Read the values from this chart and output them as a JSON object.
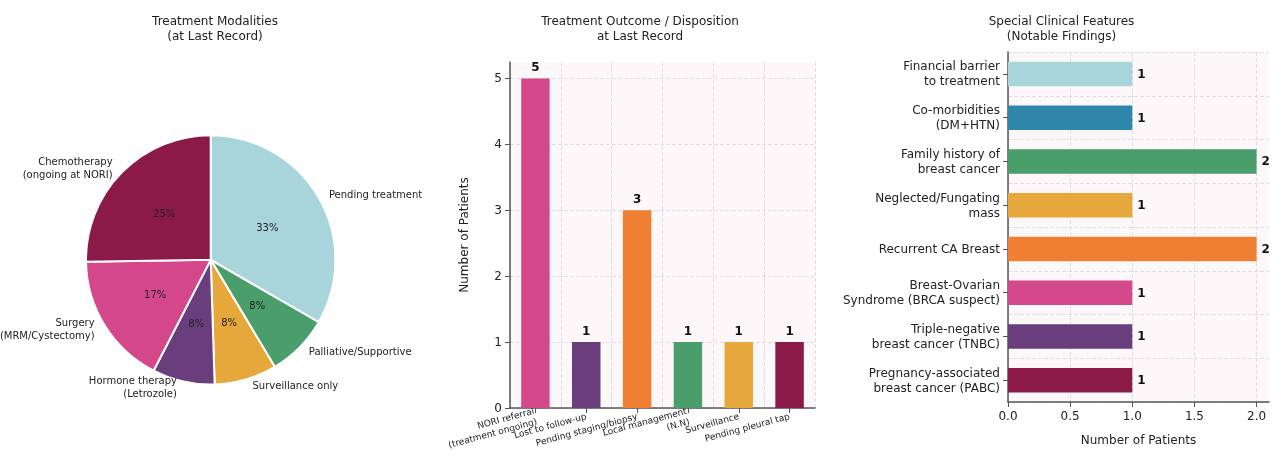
{
  "chart_data": [
    {
      "type": "pie",
      "title": "Treatment Modalities\n(at Last Record)",
      "categories": [
        "Pending treatment",
        "Palliative/Supportive",
        "Surveillance only",
        "Hormone therapy\n(Letrozole)",
        "Surgery\n(MRM/Cystectomy)",
        "Chemotherapy\n(ongoing at NORI)"
      ],
      "values": [
        33,
        8,
        8,
        8,
        17,
        25
      ],
      "value_labels": [
        "33%",
        "8%",
        "8%",
        "8%",
        "17%",
        "25%"
      ],
      "colors": [
        "#a8d5dc",
        "#4a9e6b",
        "#e6a83a",
        "#6a3d7c",
        "#d4478a",
        "#8b1a48"
      ]
    },
    {
      "type": "bar",
      "title": "Treatment Outcome / Disposition\nat Last Record",
      "ylabel": "Number of Patients",
      "categories": [
        "NORI referral\n(treatment ongoing)",
        "Lost to follow-up",
        "Pending staging/biopsy",
        "Local management\n(N.N)",
        "Surveillance",
        "Pending pleural tap"
      ],
      "values": [
        5,
        1,
        3,
        1,
        1,
        1
      ],
      "colors": [
        "#d4478a",
        "#6a3d7c",
        "#ef7f32",
        "#4a9e6b",
        "#e6a83a",
        "#8b1a48"
      ],
      "ylim": [
        0,
        5.25
      ],
      "yticks": [
        0,
        1,
        2,
        3,
        4,
        5
      ],
      "grid": true,
      "data_labels": true
    },
    {
      "type": "bar",
      "orientation": "horizontal",
      "title": "Special Clinical Features\n(Notable Findings)",
      "xlabel": "Number of Patients",
      "categories": [
        "Financial barrier\nto treatment",
        "Co-morbidities\n(DM+HTN)",
        "Family history of\nbreast cancer",
        "Neglected/Fungating\nmass",
        "Recurrent CA Breast",
        "Breast-Ovarian\nSyndrome (BRCA suspect)",
        "Triple-negative\nbreast cancer (TNBC)",
        "Pregnancy-associated\nbreast cancer (PABC)"
      ],
      "values": [
        1,
        1,
        2,
        1,
        2,
        1,
        1,
        1
      ],
      "colors": [
        "#a8d5dc",
        "#2e86ab",
        "#4a9e6b",
        "#e6a83a",
        "#ef7f32",
        "#d4478a",
        "#6a3d7c",
        "#8b1a48"
      ],
      "xlim": [
        0,
        2.1
      ],
      "xticks": [
        {
          "value": 0,
          "label": "0.0"
        },
        {
          "value": 0.5,
          "label": "0.5"
        },
        {
          "value": 1,
          "label": "1.0"
        },
        {
          "value": 1.5,
          "label": "1.5"
        },
        {
          "value": 2,
          "label": "2.0"
        }
      ],
      "grid": true,
      "data_labels": true
    }
  ]
}
